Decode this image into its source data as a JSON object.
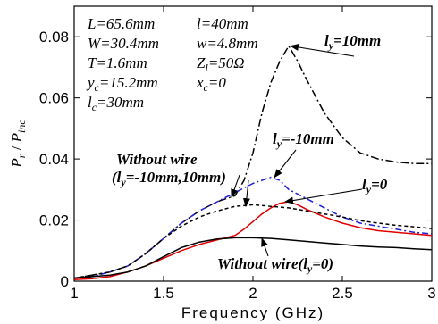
{
  "chart_data": {
    "type": "line",
    "title": "",
    "xlabel": "Frequency (GHz)",
    "ylabel_parts": {
      "p": "P",
      "r": "r",
      "sep": " / ",
      "inc": "inc"
    },
    "xlim": [
      1,
      3
    ],
    "ylim": [
      0,
      0.09
    ],
    "x_ticks": [
      1,
      1.5,
      2,
      2.5,
      3
    ],
    "x_tick_labels": [
      "1",
      "1.5",
      "2",
      "2.5",
      "3"
    ],
    "y_ticks": [
      0,
      0.02,
      0.04,
      0.06,
      0.08
    ],
    "y_tick_labels": [
      "0",
      "0.02",
      "0.04",
      "0.06",
      "0.08"
    ],
    "grid": false,
    "parameters": [
      {
        "text": "L=65.6mm"
      },
      {
        "text": "l=40mm"
      },
      {
        "text": "W=30.4mm"
      },
      {
        "text": "w=4.8mm"
      },
      {
        "text": "T=1.6mm"
      },
      {
        "text": "Z",
        "sub": "l",
        "rest": "=50Ω"
      },
      {
        "text": "y",
        "sub": "c",
        "rest": "=15.2mm"
      },
      {
        "text": "x",
        "sub": "c",
        "rest": "=0"
      },
      {
        "text": "l",
        "sub": "c",
        "rest": "=30mm"
      }
    ],
    "series": [
      {
        "color": "#000000",
        "dash": "9 3 2 3",
        "x": [
          1.0,
          1.1,
          1.2,
          1.3,
          1.4,
          1.5,
          1.6,
          1.7,
          1.8,
          1.9,
          1.95,
          2.0,
          2.05,
          2.1,
          2.15,
          2.2,
          2.25,
          2.3,
          2.4,
          2.5,
          2.6,
          2.7,
          2.8,
          2.9,
          3.0
        ],
        "y": [
          0.001,
          0.002,
          0.003,
          0.005,
          0.009,
          0.014,
          0.019,
          0.023,
          0.026,
          0.028,
          0.033,
          0.042,
          0.055,
          0.065,
          0.072,
          0.077,
          0.072,
          0.066,
          0.055,
          0.047,
          0.042,
          0.04,
          0.039,
          0.0385,
          0.0385
        ]
      },
      {
        "color": "#1f1fd6",
        "dash": "7 3 2 3",
        "x": [
          1.0,
          1.1,
          1.2,
          1.3,
          1.4,
          1.5,
          1.6,
          1.7,
          1.8,
          1.9,
          2.0,
          2.1,
          2.15,
          2.2,
          2.3,
          2.4,
          2.5,
          2.6,
          2.7,
          2.8,
          2.9,
          3.0
        ],
        "y": [
          0.001,
          0.0015,
          0.003,
          0.005,
          0.009,
          0.014,
          0.019,
          0.023,
          0.026,
          0.029,
          0.032,
          0.034,
          0.033,
          0.03,
          0.027,
          0.024,
          0.021,
          0.019,
          0.018,
          0.017,
          0.016,
          0.0155
        ]
      },
      {
        "color": "#e00000",
        "dash": "",
        "x": [
          1.0,
          1.1,
          1.2,
          1.3,
          1.4,
          1.5,
          1.6,
          1.7,
          1.8,
          1.9,
          1.95,
          2.0,
          2.05,
          2.1,
          2.15,
          2.2,
          2.25,
          2.3,
          2.4,
          2.5,
          2.6,
          2.7,
          2.8,
          2.9,
          3.0
        ],
        "y": [
          0.0005,
          0.0008,
          0.0015,
          0.003,
          0.005,
          0.0075,
          0.01,
          0.012,
          0.0135,
          0.015,
          0.017,
          0.0195,
          0.022,
          0.024,
          0.0255,
          0.026,
          0.025,
          0.0235,
          0.021,
          0.019,
          0.0175,
          0.0165,
          0.016,
          0.0155,
          0.015
        ]
      },
      {
        "color": "#000000",
        "dash": "4 3",
        "x": [
          1.0,
          1.1,
          1.2,
          1.3,
          1.4,
          1.5,
          1.6,
          1.7,
          1.8,
          1.9,
          2.0,
          2.1,
          2.2,
          2.3,
          2.4,
          2.5,
          2.6,
          2.7,
          2.8,
          2.9,
          3.0
        ],
        "y": [
          0.001,
          0.002,
          0.003,
          0.005,
          0.009,
          0.014,
          0.018,
          0.021,
          0.023,
          0.0245,
          0.025,
          0.0245,
          0.024,
          0.023,
          0.022,
          0.021,
          0.0198,
          0.019,
          0.0183,
          0.0178,
          0.0172
        ]
      },
      {
        "color": "#000000",
        "dash": "",
        "x": [
          1.0,
          1.1,
          1.2,
          1.3,
          1.4,
          1.5,
          1.6,
          1.7,
          1.8,
          1.9,
          2.0,
          2.1,
          2.2,
          2.3,
          2.4,
          2.5,
          2.6,
          2.7,
          2.8,
          2.9,
          3.0
        ],
        "y": [
          0.001,
          0.0015,
          0.002,
          0.003,
          0.005,
          0.008,
          0.011,
          0.0128,
          0.0138,
          0.0142,
          0.0142,
          0.014,
          0.0135,
          0.013,
          0.0125,
          0.012,
          0.0115,
          0.0112,
          0.011,
          0.0106,
          0.0103
        ]
      }
    ],
    "annotations": [
      {
        "lines": [
          {
            "text": "l",
            "sub": "y",
            "rest": "=10mm"
          }
        ],
        "point": [
          2.21,
          0.077
        ]
      },
      {
        "lines": [
          {
            "text": "l",
            "sub": "y",
            "rest": "=-10mm"
          }
        ],
        "point": [
          2.12,
          0.034
        ]
      },
      {
        "lines": [
          {
            "text": "l",
            "sub": "y",
            "rest": "=0"
          }
        ],
        "point": [
          2.18,
          0.026
        ]
      },
      {
        "lines": [
          {
            "text": "Without wire"
          },
          {
            "text": "(l",
            "sub": "y",
            "rest": "=-10mm,10mm)"
          }
        ],
        "point": [
          1.96,
          0.0245
        ],
        "point2": [
          1.88,
          0.0275
        ]
      },
      {
        "lines": [
          {
            "text": "Without wire(l",
            "sub": "y",
            "rest": "=0)"
          }
        ],
        "point": [
          2.05,
          0.014
        ]
      }
    ]
  }
}
